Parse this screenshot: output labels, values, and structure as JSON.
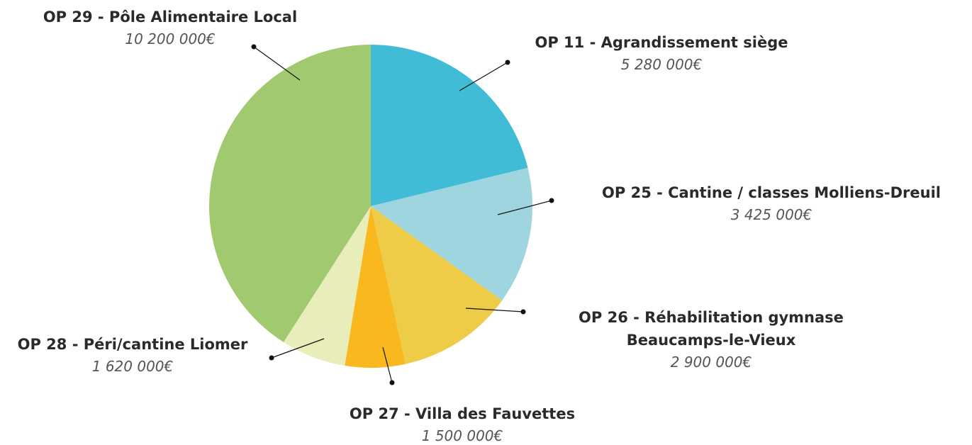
{
  "chart_data": {
    "type": "pie",
    "categories": [
      "OP 11 - Agrandissement siège",
      "OP 25 - Cantine / classes Molliens-Dreuil",
      "OP 26 - Réhabilitation gymnase Beaucamps-le-Vieux",
      "OP 27 - Villa des Fauvettes",
      "OP 28 - Péri/cantine Liomer",
      "OP 29 - Pôle Alimentaire Local"
    ],
    "values": [
      5280000,
      3425000,
      2900000,
      1500000,
      1620000,
      10200000
    ],
    "value_labels": [
      "5 280 000€",
      "3 425 000€",
      "2 900 000€",
      "1 500 000€",
      "1 620 000€",
      "10 200 000€"
    ],
    "colors": [
      "#41bcd6",
      "#9fd5de",
      "#eecc47",
      "#f8b81e",
      "#e8edb9",
      "#a1c96f"
    ]
  }
}
